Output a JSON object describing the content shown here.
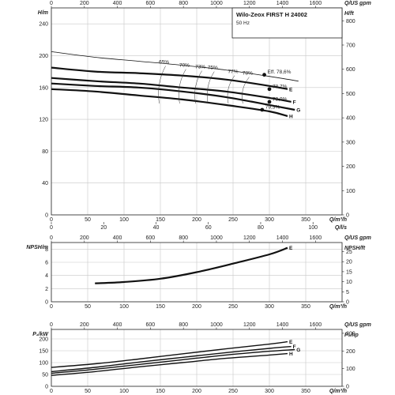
{
  "header": {
    "title": "Wilo-Zeox FIRST H 24002",
    "subtitle": "50 Hz"
  },
  "chart_data": [
    {
      "type": "line",
      "name": "head",
      "ylabel": "H/m",
      "ylabel_right": "H/ft",
      "xlabel": "Q/m³/h",
      "xlabel_top": "Q/US gpm",
      "xlim": [
        0,
        400
      ],
      "ylim": [
        0,
        260
      ],
      "x_ticks": [
        0,
        50,
        100,
        150,
        200,
        250,
        300,
        350
      ],
      "y_ticks": [
        0,
        40,
        80,
        120,
        160,
        200,
        240
      ],
      "top_ticks": [
        0,
        200,
        400,
        600,
        800,
        1000,
        1200,
        1400,
        1600
      ],
      "right_ticks": [
        0,
        100,
        200,
        300,
        400,
        500,
        600,
        700,
        800
      ],
      "series": [
        {
          "name": "",
          "x": [
            0,
            60,
            120,
            180,
            240,
            300,
            340
          ],
          "y": [
            205,
            198,
            193,
            188,
            182,
            174,
            168
          ]
        },
        {
          "name": "E",
          "x": [
            0,
            60,
            120,
            180,
            240,
            300,
            325
          ],
          "y": [
            185,
            180,
            178,
            175,
            170,
            162,
            158
          ]
        },
        {
          "name": "F",
          "x": [
            0,
            60,
            120,
            180,
            240,
            300,
            330
          ],
          "y": [
            172,
            168,
            165,
            160,
            155,
            147,
            142
          ]
        },
        {
          "name": "G",
          "x": [
            0,
            60,
            120,
            180,
            240,
            300,
            335
          ],
          "y": [
            165,
            162,
            160,
            155,
            148,
            138,
            132
          ]
        },
        {
          "name": "H",
          "x": [
            0,
            60,
            120,
            180,
            240,
            300,
            325
          ],
          "y": [
            158,
            155,
            150,
            145,
            138,
            130,
            124
          ]
        }
      ],
      "efficiency_labels": [
        "65%",
        "70%",
        "73%",
        "75%",
        "77%",
        "78%"
      ],
      "efficiency_x": [
        155,
        183,
        205,
        222,
        250,
        270
      ],
      "efficiency_y": [
        190,
        186,
        184,
        183,
        178,
        176
      ],
      "points": [
        {
          "label": "Eff. 78,6%",
          "x": 293,
          "y": 176
        },
        {
          "label": "78,7%",
          "x": 300,
          "y": 158
        },
        {
          "label": "79,9%",
          "x": 300,
          "y": 142
        },
        {
          "label": "79,3%",
          "x": 290,
          "y": 132
        }
      ]
    },
    {
      "type": "line",
      "name": "npsh",
      "ylabel": "NPSH/m",
      "ylabel_right": "NPSH/ft",
      "xlabel": "Q/m³/h",
      "xlabel_top": "Q/US gpm",
      "xlabel_mid": "Q/l/s",
      "xlim": [
        0,
        400
      ],
      "ylim": [
        0,
        9
      ],
      "x_ticks": [
        0,
        50,
        100,
        150,
        200,
        250,
        300,
        350
      ],
      "y_ticks": [
        0,
        2,
        4,
        6,
        8
      ],
      "mid_ticks": [
        0,
        20,
        40,
        60,
        80,
        100
      ],
      "top_ticks": [
        0,
        200,
        400,
        600,
        800,
        1000,
        1200,
        1400,
        1600
      ],
      "right_ticks": [
        0,
        5,
        10,
        15,
        20,
        25
      ],
      "series": [
        {
          "name": "E",
          "x": [
            60,
            100,
            150,
            200,
            250,
            300,
            325
          ],
          "y": [
            2.8,
            3.0,
            3.5,
            4.5,
            5.8,
            7.2,
            8.2
          ]
        }
      ]
    },
    {
      "type": "line",
      "name": "power",
      "ylabel": "P₂/kW",
      "ylabel_right": "P₂/hp",
      "xlabel": "Q/m³/h",
      "xlabel_top": "Q/US gpm",
      "xlim": [
        0,
        400
      ],
      "ylim": [
        0,
        240
      ],
      "x_ticks": [
        0,
        50,
        100,
        150,
        200,
        250,
        300,
        350
      ],
      "y_ticks": [
        0,
        50,
        100,
        150,
        200
      ],
      "top_ticks": [
        0,
        200,
        400,
        600,
        800,
        1000,
        1200,
        1400,
        1600
      ],
      "right_ticks": [
        0,
        100,
        200,
        300
      ],
      "series": [
        {
          "name": "E",
          "x": [
            0,
            60,
            120,
            180,
            240,
            300,
            325
          ],
          "y": [
            80,
            95,
            115,
            137,
            158,
            178,
            188
          ]
        },
        {
          "name": "F",
          "x": [
            0,
            60,
            120,
            180,
            240,
            300,
            330
          ],
          "y": [
            62,
            80,
            102,
            122,
            142,
            160,
            168
          ]
        },
        {
          "name": "G",
          "x": [
            0,
            60,
            120,
            180,
            240,
            300,
            335
          ],
          "y": [
            55,
            72,
            92,
            112,
            132,
            148,
            155
          ]
        },
        {
          "name": "H",
          "x": [
            0,
            60,
            120,
            180,
            240,
            300,
            325
          ],
          "y": [
            46,
            62,
            82,
            100,
            118,
            132,
            138
          ]
        }
      ]
    }
  ]
}
